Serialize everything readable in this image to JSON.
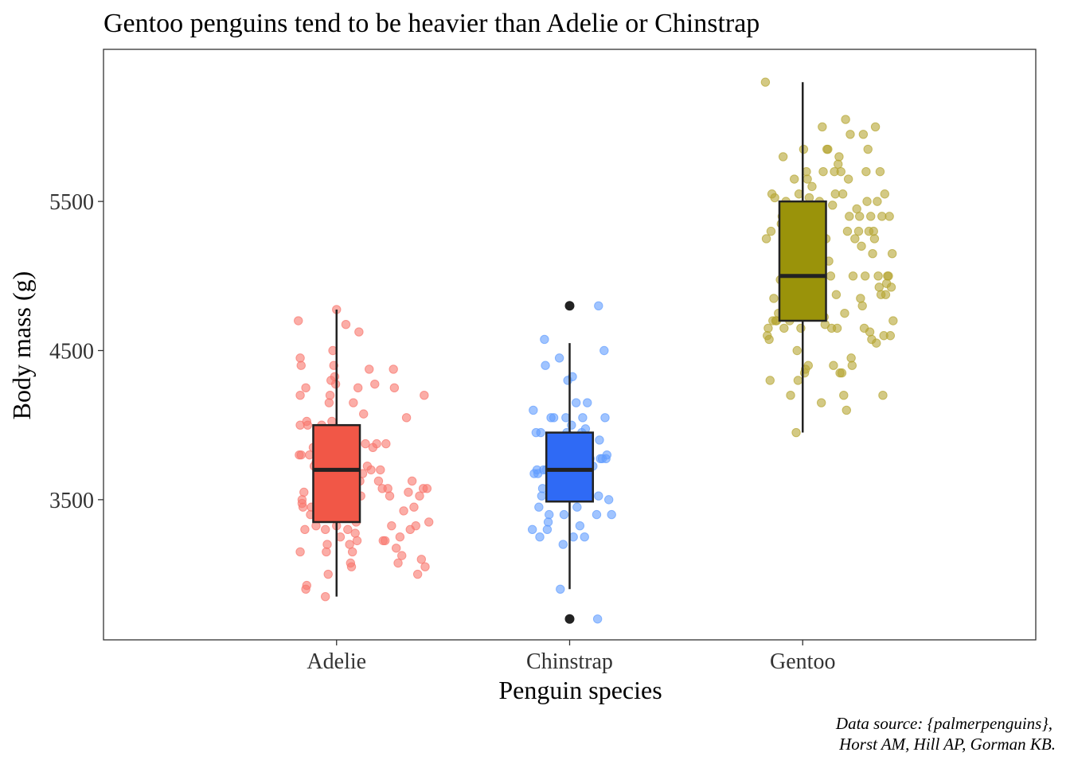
{
  "chart_data": {
    "type": "box",
    "title": "Gentoo penguins tend to be heavier than Adelie or Chinstrap",
    "xlabel": "Penguin species",
    "ylabel": "Body mass (g)",
    "caption_lines": [
      "Data source: {palmerpenguins},",
      "Horst AM, Hill AP, Gorman KB."
    ],
    "categories": [
      "Adelie",
      "Chinstrap",
      "Gentoo"
    ],
    "y_ticks": [
      3500,
      4500,
      5500
    ],
    "ylim": [
      2560,
      6520
    ],
    "grid": false,
    "legend": "none",
    "colors": {
      "Adelie": "#F8766D",
      "Chinstrap": "#619CFF",
      "Gentoo": "#B5A532"
    },
    "box_fills": {
      "Adelie": "#F15747",
      "Chinstrap": "#2F6AF5",
      "Gentoo": "#9A930A"
    },
    "series": [
      {
        "name": "Adelie",
        "box": {
          "min": 2850,
          "q1": 3350,
          "median": 3700,
          "q3": 4000,
          "max": 4775
        },
        "outliers": [],
        "points": [
          [
            -0.41,
            4700
          ],
          [
            -0.39,
            4450
          ],
          [
            -0.38,
            4400
          ],
          [
            -0.39,
            4200
          ],
          [
            -0.4,
            3800
          ],
          [
            -0.38,
            3800
          ],
          [
            -0.39,
            4000
          ],
          [
            -0.37,
            3500
          ],
          [
            -0.36,
            3450
          ],
          [
            -0.37,
            3475
          ],
          [
            -0.35,
            3550
          ],
          [
            -0.39,
            3150
          ],
          [
            -0.34,
            3300
          ],
          [
            -0.33,
            4250
          ],
          [
            -0.32,
            4025
          ],
          [
            -0.31,
            4000
          ],
          [
            -0.29,
            3800
          ],
          [
            -0.28,
            3400
          ],
          [
            -0.27,
            3450
          ],
          [
            -0.25,
            3850
          ],
          [
            -0.24,
            3725
          ],
          [
            -0.22,
            3750
          ],
          [
            -0.2,
            3900
          ],
          [
            -0.18,
            3625
          ],
          [
            -0.17,
            3625
          ],
          [
            -0.16,
            4000
          ],
          [
            -0.15,
            3725
          ],
          [
            -0.14,
            3500
          ],
          [
            -0.13,
            3475
          ],
          [
            -0.12,
            3300
          ],
          [
            -0.11,
            3150
          ],
          [
            -0.1,
            3200
          ],
          [
            -0.09,
            3550
          ],
          [
            -0.08,
            4150
          ],
          [
            -0.07,
            4200
          ],
          [
            -0.06,
            4300
          ],
          [
            -0.05,
            4025
          ],
          [
            -0.04,
            4500
          ],
          [
            -0.03,
            4400
          ],
          [
            -0.02,
            4325
          ],
          [
            -0.01,
            4275
          ],
          [
            0.0,
            4775
          ],
          [
            -0.33,
            2900
          ],
          [
            -0.32,
            2925
          ],
          [
            -0.22,
            3325
          ],
          [
            -0.12,
            2850
          ],
          [
            -0.09,
            3000
          ],
          [
            -0.05,
            3700
          ],
          [
            -0.04,
            3575
          ],
          [
            -0.03,
            3450
          ],
          [
            0.0,
            3325
          ],
          [
            0.02,
            3650
          ],
          [
            0.04,
            3250
          ],
          [
            0.05,
            3400
          ],
          [
            0.06,
            3950
          ],
          [
            0.07,
            3375
          ],
          [
            0.08,
            3500
          ],
          [
            0.09,
            3825
          ],
          [
            0.1,
            4675
          ],
          [
            0.11,
            3925
          ],
          [
            0.12,
            3300
          ],
          [
            0.14,
            3200
          ],
          [
            0.15,
            3075
          ],
          [
            0.16,
            3050
          ],
          [
            0.17,
            3150
          ],
          [
            0.18,
            4150
          ],
          [
            0.19,
            3950
          ],
          [
            0.2,
            3275
          ],
          [
            0.21,
            3350
          ],
          [
            0.22,
            3225
          ],
          [
            0.23,
            4250
          ],
          [
            0.24,
            4625
          ],
          [
            0.25,
            3625
          ],
          [
            0.26,
            3525
          ],
          [
            0.28,
            3675
          ],
          [
            0.29,
            4075
          ],
          [
            0.31,
            3875
          ],
          [
            0.33,
            3725
          ],
          [
            0.35,
            4375
          ],
          [
            0.37,
            3700
          ],
          [
            0.39,
            3850
          ],
          [
            0.41,
            4275
          ],
          [
            0.43,
            3875
          ],
          [
            0.45,
            3625
          ],
          [
            0.47,
            3700
          ],
          [
            0.49,
            3575
          ],
          [
            0.5,
            3225
          ],
          [
            0.52,
            3225
          ],
          [
            0.53,
            3875
          ],
          [
            0.55,
            3575
          ],
          [
            0.57,
            3525
          ],
          [
            0.59,
            3325
          ],
          [
            0.61,
            4375
          ],
          [
            0.62,
            4250
          ],
          [
            0.64,
            3175
          ],
          [
            0.66,
            3075
          ],
          [
            0.68,
            3250
          ],
          [
            0.7,
            3125
          ],
          [
            0.72,
            3425
          ],
          [
            0.75,
            4050
          ],
          [
            0.77,
            3550
          ],
          [
            0.79,
            3300
          ],
          [
            0.81,
            3625
          ],
          [
            0.83,
            3450
          ],
          [
            0.85,
            3325
          ],
          [
            0.87,
            3000
          ],
          [
            0.89,
            3525
          ],
          [
            0.91,
            3100
          ],
          [
            0.93,
            3575
          ],
          [
            0.94,
            4200
          ],
          [
            0.95,
            3050
          ],
          [
            0.97,
            3575
          ],
          [
            0.99,
            3350
          ]
        ]
      },
      {
        "name": "Chinstrap",
        "box": {
          "min": 2900,
          "q1": 3487.5,
          "median": 3700,
          "q3": 3950,
          "max": 4550
        },
        "outliers": [
          4800,
          2700
        ],
        "points": [
          [
            -0.4,
            3300
          ],
          [
            -0.39,
            4100
          ],
          [
            -0.38,
            3675
          ],
          [
            -0.36,
            3950
          ],
          [
            -0.35,
            3700
          ],
          [
            -0.34,
            3675
          ],
          [
            -0.33,
            3450
          ],
          [
            -0.32,
            3250
          ],
          [
            -0.31,
            3950
          ],
          [
            -0.3,
            3525
          ],
          [
            -0.29,
            3575
          ],
          [
            -0.28,
            3700
          ],
          [
            -0.27,
            4575
          ],
          [
            -0.26,
            4400
          ],
          [
            -0.25,
            3700
          ],
          [
            -0.24,
            3300
          ],
          [
            -0.23,
            3350
          ],
          [
            -0.22,
            3400
          ],
          [
            -0.2,
            4050
          ],
          [
            -0.19,
            3600
          ],
          [
            -0.18,
            3675
          ],
          [
            -0.17,
            4050
          ],
          [
            -0.16,
            3800
          ],
          [
            -0.15,
            3775
          ],
          [
            -0.13,
            3900
          ],
          [
            -0.11,
            4450
          ],
          [
            -0.1,
            2900
          ],
          [
            -0.09,
            3650
          ],
          [
            -0.08,
            3775
          ],
          [
            -0.07,
            3200
          ],
          [
            -0.06,
            3400
          ],
          [
            -0.04,
            4050
          ],
          [
            -0.03,
            3950
          ],
          [
            -0.02,
            4300
          ],
          [
            -0.01,
            3525
          ],
          [
            0.02,
            4000
          ],
          [
            0.03,
            4325
          ],
          [
            0.04,
            3250
          ],
          [
            0.05,
            3700
          ],
          [
            0.06,
            3650
          ],
          [
            0.07,
            4150
          ],
          [
            0.08,
            3450
          ],
          [
            0.09,
            3875
          ],
          [
            0.1,
            3675
          ],
          [
            0.11,
            3325
          ],
          [
            0.12,
            3600
          ],
          [
            0.13,
            3950
          ],
          [
            0.14,
            4050
          ],
          [
            0.15,
            3600
          ],
          [
            0.16,
            3250
          ],
          [
            0.17,
            3975
          ],
          [
            0.18,
            3700
          ],
          [
            0.19,
            4150
          ],
          [
            0.2,
            3550
          ],
          [
            0.22,
            3775
          ],
          [
            0.25,
            3725
          ],
          [
            0.29,
            3400
          ],
          [
            0.31,
            3525
          ],
          [
            0.32,
            3900
          ],
          [
            0.33,
            3775
          ],
          [
            0.35,
            3775
          ],
          [
            0.37,
            4500
          ],
          [
            0.38,
            4050
          ],
          [
            0.39,
            3775
          ],
          [
            0.4,
            3800
          ],
          [
            0.42,
            3500
          ],
          [
            0.45,
            3400
          ],
          [
            0.3,
            2700
          ],
          [
            0.31,
            4800
          ]
        ]
      },
      {
        "name": "Gentoo",
        "box": {
          "min": 3950,
          "q1": 4700,
          "median": 5000,
          "q3": 5500,
          "max": 6300
        },
        "outliers": [],
        "points": [
          [
            -0.4,
            6300
          ],
          [
            -0.39,
            5250
          ],
          [
            -0.38,
            4600
          ],
          [
            -0.37,
            4650
          ],
          [
            -0.36,
            4575
          ],
          [
            -0.35,
            4300
          ],
          [
            -0.34,
            5300
          ],
          [
            -0.33,
            5550
          ],
          [
            -0.32,
            4700
          ],
          [
            -0.31,
            4850
          ],
          [
            -0.3,
            5525
          ],
          [
            -0.29,
            4700
          ],
          [
            -0.28,
            4700
          ],
          [
            -0.26,
            4750
          ],
          [
            -0.24,
            4975
          ],
          [
            -0.23,
            5350
          ],
          [
            -0.22,
            5400
          ],
          [
            -0.21,
            5800
          ],
          [
            -0.2,
            4650
          ],
          [
            -0.19,
            5200
          ],
          [
            -0.18,
            5500
          ],
          [
            -0.17,
            4725
          ],
          [
            -0.16,
            4925
          ],
          [
            -0.14,
            4700
          ],
          [
            -0.13,
            4200
          ],
          [
            -0.12,
            5050
          ],
          [
            -0.1,
            5250
          ],
          [
            -0.09,
            5650
          ],
          [
            -0.08,
            5350
          ],
          [
            -0.07,
            3950
          ],
          [
            -0.06,
            4500
          ],
          [
            -0.05,
            4300
          ],
          [
            -0.04,
            5550
          ],
          [
            -0.03,
            4800
          ],
          [
            -0.02,
            4650
          ],
          [
            -0.01,
            5100
          ],
          [
            0.0,
            5100
          ],
          [
            0.01,
            5850
          ],
          [
            0.02,
            4350
          ],
          [
            0.03,
            4375
          ],
          [
            0.04,
            5700
          ],
          [
            0.05,
            5650
          ],
          [
            0.06,
            4400
          ],
          [
            0.07,
            5525
          ],
          [
            0.08,
            5050
          ],
          [
            0.1,
            5600
          ],
          [
            0.12,
            4850
          ],
          [
            0.15,
            5300
          ],
          [
            0.16,
            4750
          ],
          [
            0.18,
            5500
          ],
          [
            0.2,
            4150
          ],
          [
            0.21,
            6000
          ],
          [
            0.22,
            5700
          ],
          [
            0.23,
            4725
          ],
          [
            0.24,
            4675
          ],
          [
            0.25,
            5250
          ],
          [
            0.26,
            5850
          ],
          [
            0.27,
            5850
          ],
          [
            0.28,
            5100
          ],
          [
            0.3,
            5000
          ],
          [
            0.31,
            4650
          ],
          [
            0.32,
            5475
          ],
          [
            0.33,
            4400
          ],
          [
            0.34,
            5700
          ],
          [
            0.35,
            5550
          ],
          [
            0.36,
            4875
          ],
          [
            0.37,
            4650
          ],
          [
            0.38,
            5750
          ],
          [
            0.39,
            5800
          ],
          [
            0.4,
            4350
          ],
          [
            0.41,
            5700
          ],
          [
            0.42,
            4350
          ],
          [
            0.43,
            5550
          ],
          [
            0.44,
            4200
          ],
          [
            0.45,
            4750
          ],
          [
            0.46,
            6050
          ],
          [
            0.47,
            4100
          ],
          [
            0.48,
            5300
          ],
          [
            0.49,
            5650
          ],
          [
            0.5,
            5400
          ],
          [
            0.51,
            5950
          ],
          [
            0.52,
            4450
          ],
          [
            0.53,
            4400
          ],
          [
            0.54,
            5000
          ],
          [
            0.56,
            5250
          ],
          [
            0.58,
            5450
          ],
          [
            0.6,
            5300
          ],
          [
            0.61,
            5400
          ],
          [
            0.62,
            4850
          ],
          [
            0.63,
            5200
          ],
          [
            0.64,
            4800
          ],
          [
            0.65,
            5950
          ],
          [
            0.66,
            4650
          ],
          [
            0.67,
            5000
          ],
          [
            0.68,
            5700
          ],
          [
            0.69,
            5500
          ],
          [
            0.7,
            5850
          ],
          [
            0.71,
            5300
          ],
          [
            0.72,
            4625
          ],
          [
            0.73,
            5400
          ],
          [
            0.74,
            4575
          ],
          [
            0.75,
            5150
          ],
          [
            0.76,
            5300
          ],
          [
            0.77,
            5250
          ],
          [
            0.78,
            6000
          ],
          [
            0.79,
            4550
          ],
          [
            0.8,
            5500
          ],
          [
            0.81,
            5000
          ],
          [
            0.82,
            4925
          ],
          [
            0.83,
            5700
          ],
          [
            0.84,
            4875
          ],
          [
            0.85,
            5400
          ],
          [
            0.86,
            4200
          ],
          [
            0.87,
            4600
          ],
          [
            0.88,
            5550
          ],
          [
            0.89,
            4875
          ],
          [
            0.9,
            4950
          ],
          [
            0.91,
            5000
          ],
          [
            0.92,
            5000
          ],
          [
            0.93,
            5400
          ],
          [
            0.94,
            4600
          ],
          [
            0.95,
            4925
          ],
          [
            0.96,
            5150
          ],
          [
            0.97,
            4700
          ]
        ]
      }
    ]
  }
}
